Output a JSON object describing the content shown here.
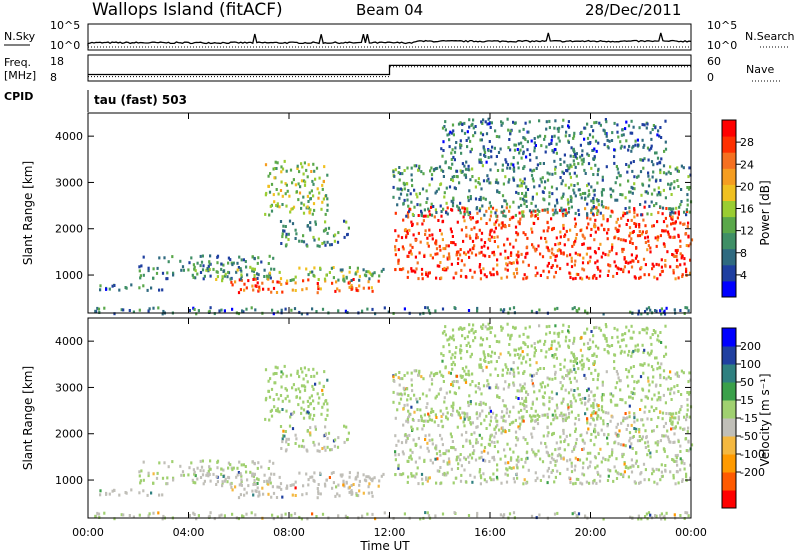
{
  "header": {
    "site": "Wallops Island (fitACF)",
    "beam": "Beam 04",
    "date": "28/Dec/2011"
  },
  "top_panels": {
    "nsky_label": "N.Sky",
    "nsky_ticks": [
      "10^5",
      "10^0"
    ],
    "nsearch_label": "N.Search",
    "nsearch_ticks": [
      "10^5",
      "10^0"
    ],
    "freq_label": "Freq.",
    "freq_unit": "[MHz]",
    "freq_ticks": [
      "18",
      "8"
    ],
    "nave_label": "Nave",
    "nave_ticks": [
      "60",
      "0"
    ],
    "cpid_label": "CPID",
    "cpid_value": "tau (fast) 503"
  },
  "chart_data": {
    "type": "heatmap",
    "xlabel": "Time UT",
    "x_ticks": [
      "00:00",
      "04:00",
      "08:00",
      "12:00",
      "16:00",
      "20:00",
      "00:00"
    ],
    "xlim_hours": [
      0,
      24
    ],
    "ylabel": "Slant Range [km]",
    "y_ticks": [
      "4000",
      "3000",
      "2000",
      "1000"
    ],
    "ylim_km": [
      180,
      4500
    ],
    "panels": [
      {
        "quantity": "Power",
        "colorbar_label": "Power [dB]",
        "colorbar_ticks": [
          "28",
          "24",
          "20",
          "16",
          "12",
          "8",
          "4"
        ],
        "range": [
          0,
          32
        ],
        "colors": [
          "#0000ff",
          "#1f3fa0",
          "#2f6a80",
          "#3f8f66",
          "#5aa84a",
          "#9acd32",
          "#f0c020",
          "#f59d20",
          "#f57020",
          "#ff3000",
          "#ff0000"
        ]
      },
      {
        "quantity": "Velocity",
        "colorbar_label": "Velocity [m s⁻¹]",
        "colorbar_ticks": [
          "200",
          "100",
          "50",
          "15",
          "-15",
          "-50",
          "-100",
          "-200"
        ],
        "range": [
          -250,
          250
        ],
        "colors": [
          "#ff0000",
          "#ff5a00",
          "#ff9a00",
          "#f4b840",
          "#c0bfb8",
          "#a0d070",
          "#3aa04a",
          "#2f8080",
          "#2040a0",
          "#0000ff"
        ]
      }
    ],
    "scatter_regions": [
      {
        "t": [
          0.4,
          4.2
        ],
        "r": [
          700,
          820
        ],
        "power": 7,
        "vel": -20
      },
      {
        "t": [
          2.0,
          7.5
        ],
        "r": [
          950,
          1450
        ],
        "power": 9,
        "vel": 0
      },
      {
        "t": [
          5.5,
          11.6
        ],
        "r": [
          650,
          950
        ],
        "power": 26,
        "vel": -40
      },
      {
        "t": [
          4.5,
          11.8
        ],
        "r": [
          900,
          1200
        ],
        "power": 13,
        "vel": -20
      },
      {
        "t": [
          7.0,
          9.5
        ],
        "r": [
          2300,
          3500
        ],
        "power": 15,
        "vel": 20
      },
      {
        "t": [
          7.6,
          10.4
        ],
        "r": [
          1650,
          2200
        ],
        "power": 10,
        "vel": 0
      },
      {
        "t": [
          12.1,
          24.0
        ],
        "r": [
          950,
          2500
        ],
        "power": 28,
        "vel": 0
      },
      {
        "t": [
          12.1,
          24.0
        ],
        "r": [
          2300,
          3400
        ],
        "power": 10,
        "vel": 10
      },
      {
        "t": [
          14.0,
          23.0
        ],
        "r": [
          3400,
          4400
        ],
        "power": 8,
        "vel": 20
      },
      {
        "t": [
          0.0,
          24.0
        ],
        "r": [
          190,
          330
        ],
        "power": 8,
        "vel": 0
      }
    ],
    "nave_level": {
      "before_12ut": 10,
      "after_12ut": 33
    },
    "freq_level": {
      "before_12ut": 10.5,
      "after_12ut": 14
    }
  }
}
